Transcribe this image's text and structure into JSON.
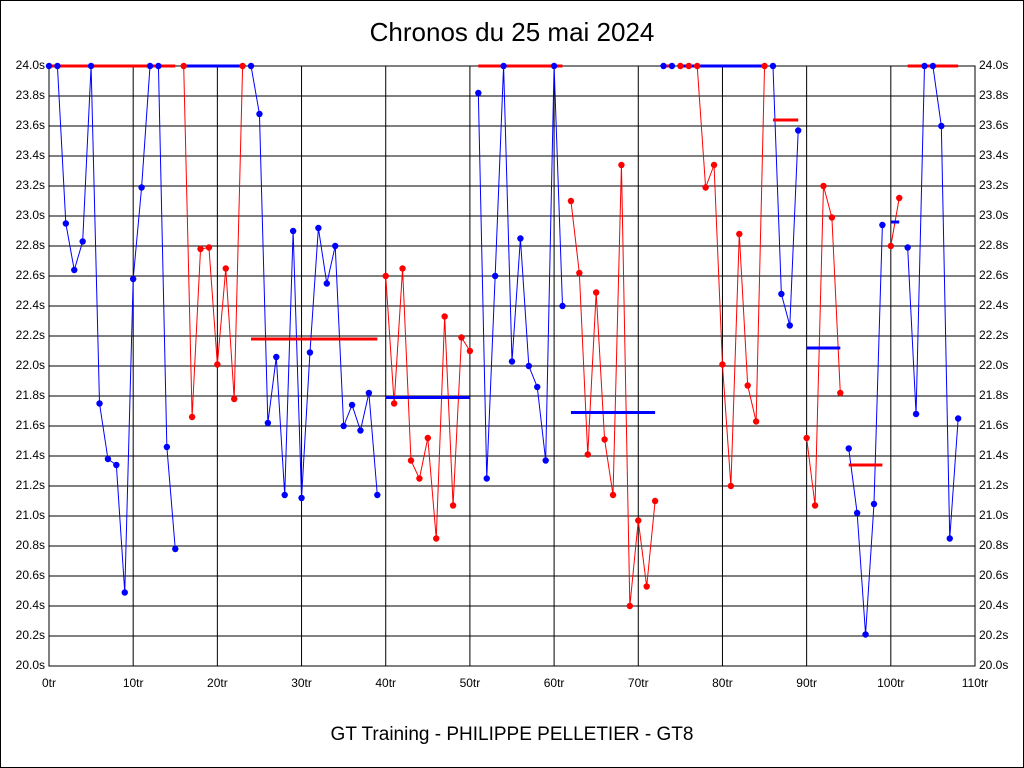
{
  "chart_data": {
    "type": "line",
    "title": "Chronos du 25 mai 2024",
    "subtitle": "GT Training - PHILIPPE PELLETIER - GT8",
    "xlim": [
      0,
      110
    ],
    "xticks": [
      {
        "value": 0,
        "label": "0tr"
      },
      {
        "value": 10,
        "label": "10tr"
      },
      {
        "value": 20,
        "label": "20tr"
      },
      {
        "value": 30,
        "label": "30tr"
      },
      {
        "value": 40,
        "label": "40tr"
      },
      {
        "value": 50,
        "label": "50tr"
      },
      {
        "value": 60,
        "label": "60tr"
      },
      {
        "value": 70,
        "label": "70tr"
      },
      {
        "value": 80,
        "label": "80tr"
      },
      {
        "value": 90,
        "label": "90tr"
      },
      {
        "value": 100,
        "label": "100tr"
      },
      {
        "value": 110,
        "label": "110tr"
      }
    ],
    "ylim": [
      20.0,
      24.0
    ],
    "yticks": [
      {
        "value": 20.0,
        "label": "20.0s"
      },
      {
        "value": 20.2,
        "label": "20.2s"
      },
      {
        "value": 20.4,
        "label": "20.4s"
      },
      {
        "value": 20.6,
        "label": "20.6s"
      },
      {
        "value": 20.8,
        "label": "20.8s"
      },
      {
        "value": 21.0,
        "label": "21.0s"
      },
      {
        "value": 21.2,
        "label": "21.2s"
      },
      {
        "value": 21.4,
        "label": "21.4s"
      },
      {
        "value": 21.6,
        "label": "21.6s"
      },
      {
        "value": 21.8,
        "label": "21.8s"
      },
      {
        "value": 22.0,
        "label": "22.0s"
      },
      {
        "value": 22.2,
        "label": "22.2s"
      },
      {
        "value": 22.4,
        "label": "22.4s"
      },
      {
        "value": 22.6,
        "label": "22.6s"
      },
      {
        "value": 22.8,
        "label": "22.8s"
      },
      {
        "value": 23.0,
        "label": "23.0s"
      },
      {
        "value": 23.2,
        "label": "23.2s"
      },
      {
        "value": 23.4,
        "label": "23.4s"
      },
      {
        "value": 23.6,
        "label": "23.6s"
      },
      {
        "value": 23.8,
        "label": "23.8s"
      },
      {
        "value": 24.0,
        "label": "24.0s"
      }
    ],
    "grid": true,
    "series": [
      {
        "color": "#0000ff",
        "mean_color": "#ff0000",
        "mean": 24.0,
        "x": [
          0,
          1,
          2,
          3,
          4,
          5,
          6,
          7,
          8,
          9,
          10,
          11,
          12,
          13,
          14,
          15
        ],
        "values": [
          24.0,
          24.0,
          22.95,
          22.64,
          22.83,
          24.0,
          21.75,
          21.38,
          21.34,
          20.49,
          22.58,
          23.19,
          24.0,
          24.0,
          21.46,
          20.78
        ]
      },
      {
        "color": "#ff0000",
        "mean_color": "#0000ff",
        "mean": 24.0,
        "x": [
          16,
          17,
          18,
          19,
          20,
          21,
          22,
          23
        ],
        "values": [
          24.0,
          21.66,
          22.78,
          22.79,
          22.01,
          22.65,
          21.78,
          24.0
        ]
      },
      {
        "color": "#0000ff",
        "mean_color": "#ff0000",
        "mean": 22.18,
        "x": [
          24,
          25,
          26,
          27,
          28,
          29,
          30,
          31,
          32,
          33,
          34,
          35,
          36,
          37,
          38,
          39
        ],
        "values": [
          24.0,
          23.68,
          21.62,
          22.06,
          21.14,
          22.9,
          21.12,
          22.09,
          22.92,
          22.55,
          22.8,
          21.6,
          21.74,
          21.57,
          21.82,
          21.14
        ]
      },
      {
        "color": "#ff0000",
        "mean_color": "#0000ff",
        "mean": 21.79,
        "x": [
          40,
          41,
          42,
          43,
          44,
          45,
          46,
          47,
          48,
          49,
          50
        ],
        "values": [
          22.6,
          21.75,
          22.65,
          21.37,
          21.25,
          21.52,
          20.85,
          22.33,
          21.07,
          22.19,
          22.1
        ]
      },
      {
        "color": "#0000ff",
        "mean_color": "#ff0000",
        "mean": 24.0,
        "x": [
          51,
          52,
          53,
          54,
          55,
          56,
          57,
          58,
          59,
          60,
          61
        ],
        "values": [
          23.82,
          21.25,
          22.6,
          24.0,
          22.03,
          22.85,
          22.0,
          21.86,
          21.37,
          24.0,
          22.4
        ]
      },
      {
        "color": "#ff0000",
        "mean_color": "#0000ff",
        "mean": 21.69,
        "x": [
          62,
          63,
          64,
          65,
          66,
          67,
          68,
          69,
          70,
          71,
          72
        ],
        "values": [
          23.1,
          22.62,
          21.41,
          22.49,
          21.51,
          21.14,
          23.34,
          20.4,
          20.97,
          20.53,
          21.1
        ]
      },
      {
        "color": "#0000ff",
        "mean_color": "#ff0000",
        "mean": 24.0,
        "x": [
          73,
          74
        ],
        "values": [
          24.0,
          24.0
        ]
      },
      {
        "color": "#ff0000",
        "mean_color": "#0000ff",
        "mean": 24.0,
        "x": [
          75,
          76,
          77,
          78,
          79,
          80,
          81,
          82,
          83,
          84,
          85
        ],
        "values": [
          24.0,
          24.0,
          24.0,
          23.19,
          23.34,
          22.01,
          21.2,
          22.88,
          21.87,
          21.63,
          24.0
        ]
      },
      {
        "color": "#0000ff",
        "mean_color": "#ff0000",
        "mean": 23.64,
        "x": [
          86,
          87,
          88,
          89
        ],
        "values": [
          24.0,
          22.48,
          22.27,
          23.57
        ]
      },
      {
        "color": "#ff0000",
        "mean_color": "#0000ff",
        "mean": 22.12,
        "x": [
          90,
          91,
          92,
          93,
          94
        ],
        "values": [
          21.52,
          21.07,
          23.2,
          22.99,
          21.82
        ]
      },
      {
        "color": "#0000ff",
        "mean_color": "#ff0000",
        "mean": 21.34,
        "x": [
          95,
          96,
          97,
          98,
          99
        ],
        "values": [
          21.45,
          21.02,
          20.21,
          21.08,
          22.94
        ]
      },
      {
        "color": "#ff0000",
        "mean_color": "#0000ff",
        "mean": 22.96,
        "x": [
          100,
          101
        ],
        "values": [
          22.8,
          23.12
        ]
      },
      {
        "color": "#0000ff",
        "mean_color": "#ff0000",
        "mean": 24.0,
        "x": [
          102,
          103,
          104,
          105,
          106,
          107,
          108
        ],
        "values": [
          22.79,
          21.68,
          24.0,
          24.0,
          23.6,
          20.85,
          21.65
        ]
      }
    ]
  }
}
